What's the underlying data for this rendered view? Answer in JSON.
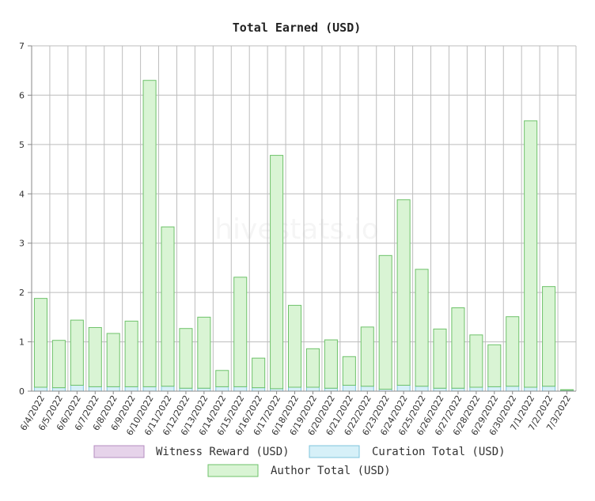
{
  "watermark": "hivestats.io",
  "chart_data": {
    "type": "bar",
    "stacked": true,
    "title": "Total Earned (USD)",
    "xlabel": "",
    "ylabel": "",
    "ylim": [
      0,
      7
    ],
    "yticks": [
      0,
      1,
      2,
      3,
      4,
      5,
      6,
      7
    ],
    "grid": true,
    "legend_position": "bottom",
    "categories": [
      "6/4/2022",
      "6/5/2022",
      "6/6/2022",
      "6/7/2022",
      "6/8/2022",
      "6/9/2022",
      "6/10/2022",
      "6/11/2022",
      "6/12/2022",
      "6/13/2022",
      "6/14/2022",
      "6/15/2022",
      "6/16/2022",
      "6/17/2022",
      "6/18/2022",
      "6/19/2022",
      "6/20/2022",
      "6/21/2022",
      "6/22/2022",
      "6/23/2022",
      "6/24/2022",
      "6/25/2022",
      "6/26/2022",
      "6/27/2022",
      "6/28/2022",
      "6/29/2022",
      "6/30/2022",
      "7/1/2022",
      "7/2/2022",
      "7/3/2022"
    ],
    "series": [
      {
        "name": "Witness Reward (USD)",
        "fill": "#e6d3ea",
        "stroke": "#b48cc0",
        "values": [
          0,
          0,
          0,
          0,
          0,
          0,
          0,
          0,
          0,
          0,
          0,
          0,
          0,
          0,
          0,
          0,
          0,
          0,
          0,
          0,
          0,
          0,
          0,
          0,
          0,
          0,
          0,
          0,
          0,
          0
        ]
      },
      {
        "name": "Curation Total (USD)",
        "fill": "#d6f0f8",
        "stroke": "#7fc4dc",
        "values": [
          0.08,
          0.07,
          0.12,
          0.09,
          0.09,
          0.09,
          0.09,
          0.1,
          0.06,
          0.06,
          0.09,
          0.09,
          0.07,
          0.05,
          0.08,
          0.08,
          0.06,
          0.12,
          0.1,
          0.04,
          0.12,
          0.1,
          0.06,
          0.06,
          0.08,
          0.09,
          0.1,
          0.08,
          0.1,
          0.02
        ]
      },
      {
        "name": "Author Total (USD)",
        "fill": "#d9f4d4",
        "stroke": "#6ec26a",
        "values": [
          1.8,
          0.96,
          1.32,
          1.2,
          1.08,
          1.33,
          6.21,
          3.23,
          1.21,
          1.44,
          0.33,
          2.22,
          0.6,
          4.73,
          1.66,
          0.78,
          0.98,
          0.58,
          1.2,
          2.71,
          3.76,
          2.37,
          1.2,
          1.63,
          1.06,
          0.85,
          1.41,
          5.4,
          2.02,
          0.01
        ]
      }
    ]
  }
}
